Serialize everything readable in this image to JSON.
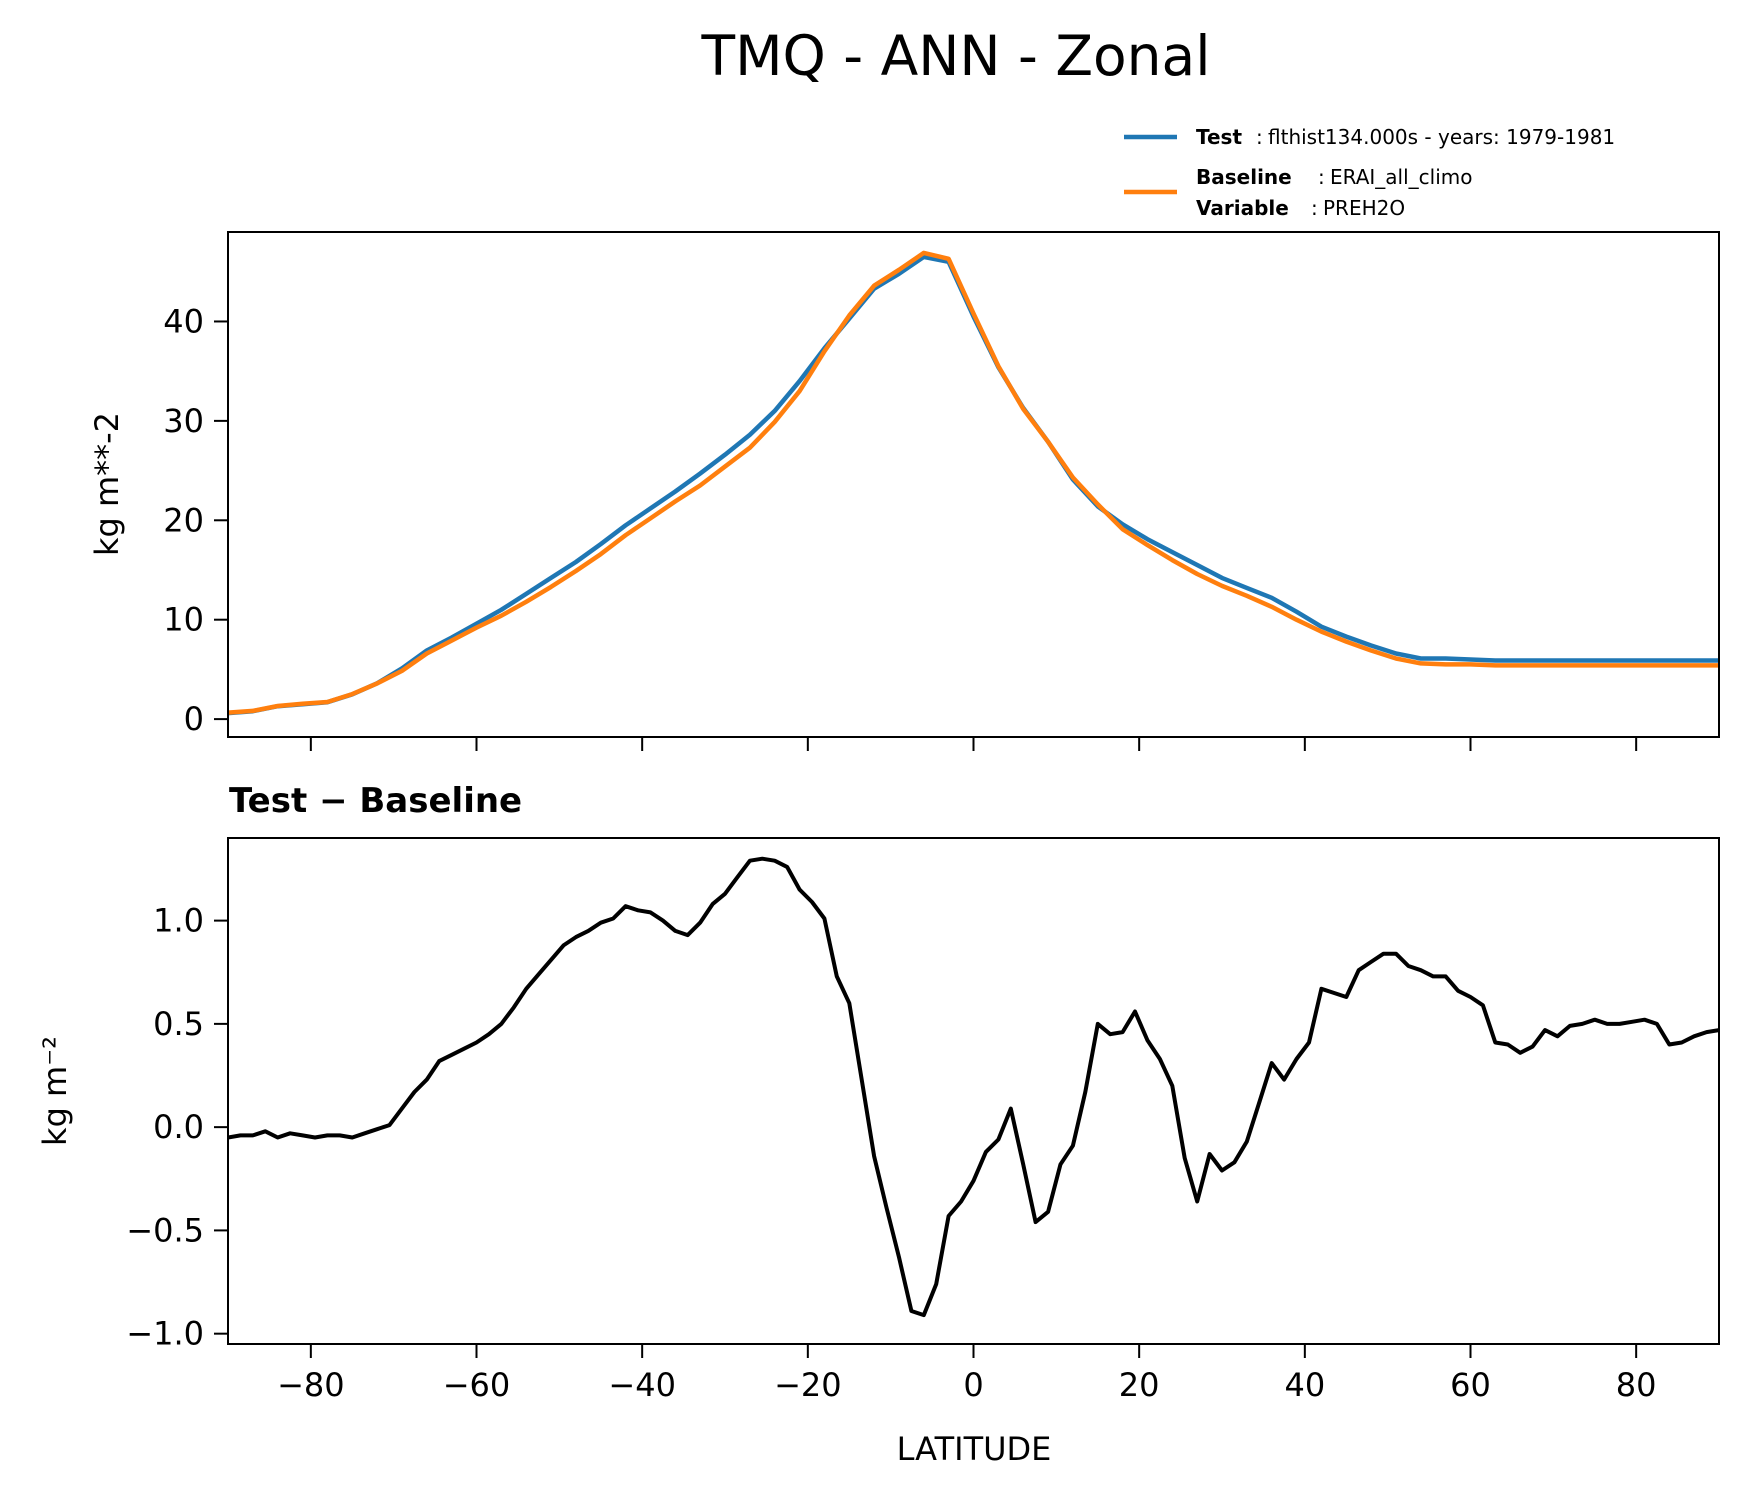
{
  "figure": {
    "title": "TMQ - ANN - Zonal"
  },
  "legend": {
    "test_key": "Test",
    "test_value": "flthist134.000s - years: 1979-1981",
    "baseline_key": "Baseline",
    "baseline_value": "ERAI_all_climo",
    "variable_key": "Variable",
    "variable_value": "PREH2O",
    "sep": ":"
  },
  "colors": {
    "test": "#1f77b4",
    "baseline": "#ff7f0e",
    "diff": "#000000"
  },
  "chart_data": [
    {
      "type": "line",
      "title": "",
      "xlabel": "",
      "ylabel": "kg m**-2",
      "xlim": [
        -90,
        90
      ],
      "ylim": [
        -1.8,
        49
      ],
      "xticks": [
        -80,
        -60,
        -40,
        -20,
        0,
        20,
        40,
        60,
        80
      ],
      "xtick_labels_shown": false,
      "yticks": [
        0,
        10,
        20,
        30,
        40
      ],
      "ytick_labels": [
        "0",
        "10",
        "20",
        "30",
        "40"
      ],
      "legend_position": "above-right",
      "x": [
        -90,
        -87,
        -84,
        -81,
        -78,
        -75,
        -72,
        -69,
        -66,
        -63,
        -60,
        -57,
        -54,
        -51,
        -48,
        -45,
        -42,
        -39,
        -36,
        -33,
        -30,
        -27,
        -24,
        -21,
        -18,
        -15,
        -12,
        -9,
        -6,
        -3,
        0,
        3,
        6,
        9,
        12,
        15,
        18,
        21,
        24,
        27,
        30,
        33,
        36,
        39,
        42,
        45,
        48,
        51,
        54,
        57,
        60,
        63,
        66,
        69,
        72,
        75,
        78,
        81,
        84,
        87,
        90
      ],
      "series": [
        {
          "name": "Test",
          "values": [
            0.6,
            0.8,
            1.3,
            1.5,
            1.7,
            2.5,
            3.6,
            5.1,
            6.9,
            8.2,
            9.6,
            11.0,
            12.6,
            14.2,
            15.8,
            17.6,
            19.5,
            21.2,
            22.9,
            24.7,
            26.6,
            28.6,
            31.0,
            34.0,
            37.3,
            40.3,
            43.3,
            44.8,
            46.5,
            46.0,
            40.5,
            35.4,
            31.3,
            27.9,
            24.1,
            21.4,
            19.6,
            18.1,
            16.8,
            15.5,
            14.2,
            13.2,
            12.2,
            10.8,
            9.3,
            8.3,
            7.4,
            6.6,
            6.1,
            6.1,
            6.0,
            5.9,
            5.9,
            5.9,
            5.9,
            5.9,
            5.9,
            5.9,
            5.9,
            5.9,
            5.9
          ]
        },
        {
          "name": "Baseline",
          "values": [
            0.65,
            0.83,
            1.32,
            1.55,
            1.72,
            2.52,
            3.59,
            4.85,
            6.6,
            7.9,
            9.2,
            10.4,
            11.8,
            13.3,
            14.9,
            16.6,
            18.5,
            20.2,
            21.9,
            23.5,
            25.4,
            27.3,
            29.9,
            33.0,
            37.0,
            40.6,
            43.6,
            45.2,
            46.9,
            46.3,
            40.8,
            35.5,
            31.2,
            27.9,
            24.3,
            21.6,
            19.1,
            17.5,
            16.0,
            14.6,
            13.4,
            12.4,
            11.3,
            10.0,
            8.8,
            7.8,
            6.9,
            6.1,
            5.6,
            5.5,
            5.5,
            5.4,
            5.4,
            5.4,
            5.4,
            5.4,
            5.4,
            5.4,
            5.4,
            5.4,
            5.4
          ]
        }
      ]
    },
    {
      "type": "line",
      "title": "Test − Baseline",
      "xlabel": "LATITUDE",
      "ylabel": "kg m⁻²",
      "xlim": [
        -90,
        90
      ],
      "ylim": [
        -1.05,
        1.4
      ],
      "xticks": [
        -80,
        -60,
        -40,
        -20,
        0,
        20,
        40,
        60,
        80
      ],
      "xtick_labels": [
        "−80",
        "−60",
        "−40",
        "−20",
        "0",
        "20",
        "40",
        "60",
        "80"
      ],
      "yticks": [
        -1.0,
        -0.5,
        0.0,
        0.5,
        1.0
      ],
      "ytick_labels": [
        "−1.0",
        "−0.5",
        "0.0",
        "0.5",
        "1.0"
      ],
      "x": [
        -90,
        -88.5,
        -87,
        -85.5,
        -84,
        -82.5,
        -81,
        -79.5,
        -78,
        -76.5,
        -75,
        -73.5,
        -72,
        -70.5,
        -69,
        -67.5,
        -66,
        -64.5,
        -63,
        -61.5,
        -60,
        -58.5,
        -57,
        -55.5,
        -54,
        -52.5,
        -51,
        -49.5,
        -48,
        -46.5,
        -45,
        -43.5,
        -42,
        -40.5,
        -39,
        -37.5,
        -36,
        -34.5,
        -33,
        -31.5,
        -30,
        -28.5,
        -27,
        -25.5,
        -24,
        -22.5,
        -21,
        -19.5,
        -18,
        -16.5,
        -15,
        -13.5,
        -12,
        -10.5,
        -9,
        -7.5,
        -6,
        -4.5,
        -3,
        -1.5,
        0,
        1.5,
        3,
        4.5,
        6,
        7.5,
        9,
        10.5,
        12,
        13.5,
        15,
        16.5,
        18,
        19.5,
        21,
        22.5,
        24,
        25.5,
        27,
        28.5,
        30,
        31.5,
        33,
        34.5,
        36,
        37.5,
        39,
        40.5,
        42,
        43.5,
        45,
        46.5,
        48,
        49.5,
        51,
        52.5,
        54,
        55.5,
        57,
        58.5,
        60,
        61.5,
        63,
        64.5,
        66,
        67.5,
        69,
        70.5,
        72,
        73.5,
        75,
        76.5,
        78,
        79.5,
        81,
        82.5,
        84,
        85.5,
        87,
        88.5,
        90
      ],
      "series": [
        {
          "name": "",
          "values": [
            -0.05,
            -0.04,
            -0.04,
            -0.02,
            -0.05,
            -0.03,
            -0.04,
            -0.05,
            -0.04,
            -0.04,
            -0.05,
            -0.03,
            -0.01,
            0.01,
            0.09,
            0.17,
            0.23,
            0.32,
            0.35,
            0.38,
            0.41,
            0.45,
            0.5,
            0.58,
            0.67,
            0.74,
            0.81,
            0.88,
            0.92,
            0.95,
            0.99,
            1.01,
            1.07,
            1.05,
            1.04,
            1.0,
            0.95,
            0.93,
            0.99,
            1.08,
            1.13,
            1.21,
            1.29,
            1.3,
            1.29,
            1.26,
            1.15,
            1.09,
            1.01,
            0.73,
            0.6,
            0.23,
            -0.14,
            -0.39,
            -0.63,
            -0.89,
            -0.91,
            -0.76,
            -0.43,
            -0.36,
            -0.26,
            -0.12,
            -0.06,
            0.09,
            -0.18,
            -0.46,
            -0.41,
            -0.18,
            -0.09,
            0.17,
            0.5,
            0.45,
            0.46,
            0.56,
            0.42,
            0.33,
            0.2,
            -0.15,
            -0.36,
            -0.13,
            -0.21,
            -0.17,
            -0.07,
            0.12,
            0.31,
            0.23,
            0.33,
            0.41,
            0.67,
            0.65,
            0.63,
            0.76,
            0.8,
            0.84,
            0.84,
            0.78,
            0.76,
            0.73,
            0.73,
            0.66,
            0.63,
            0.59,
            0.41,
            0.4,
            0.36,
            0.39,
            0.47,
            0.44,
            0.49,
            0.5,
            0.52,
            0.5,
            0.5,
            0.51,
            0.52,
            0.5,
            0.4,
            0.41,
            0.44,
            0.46,
            0.47
          ]
        }
      ]
    }
  ]
}
